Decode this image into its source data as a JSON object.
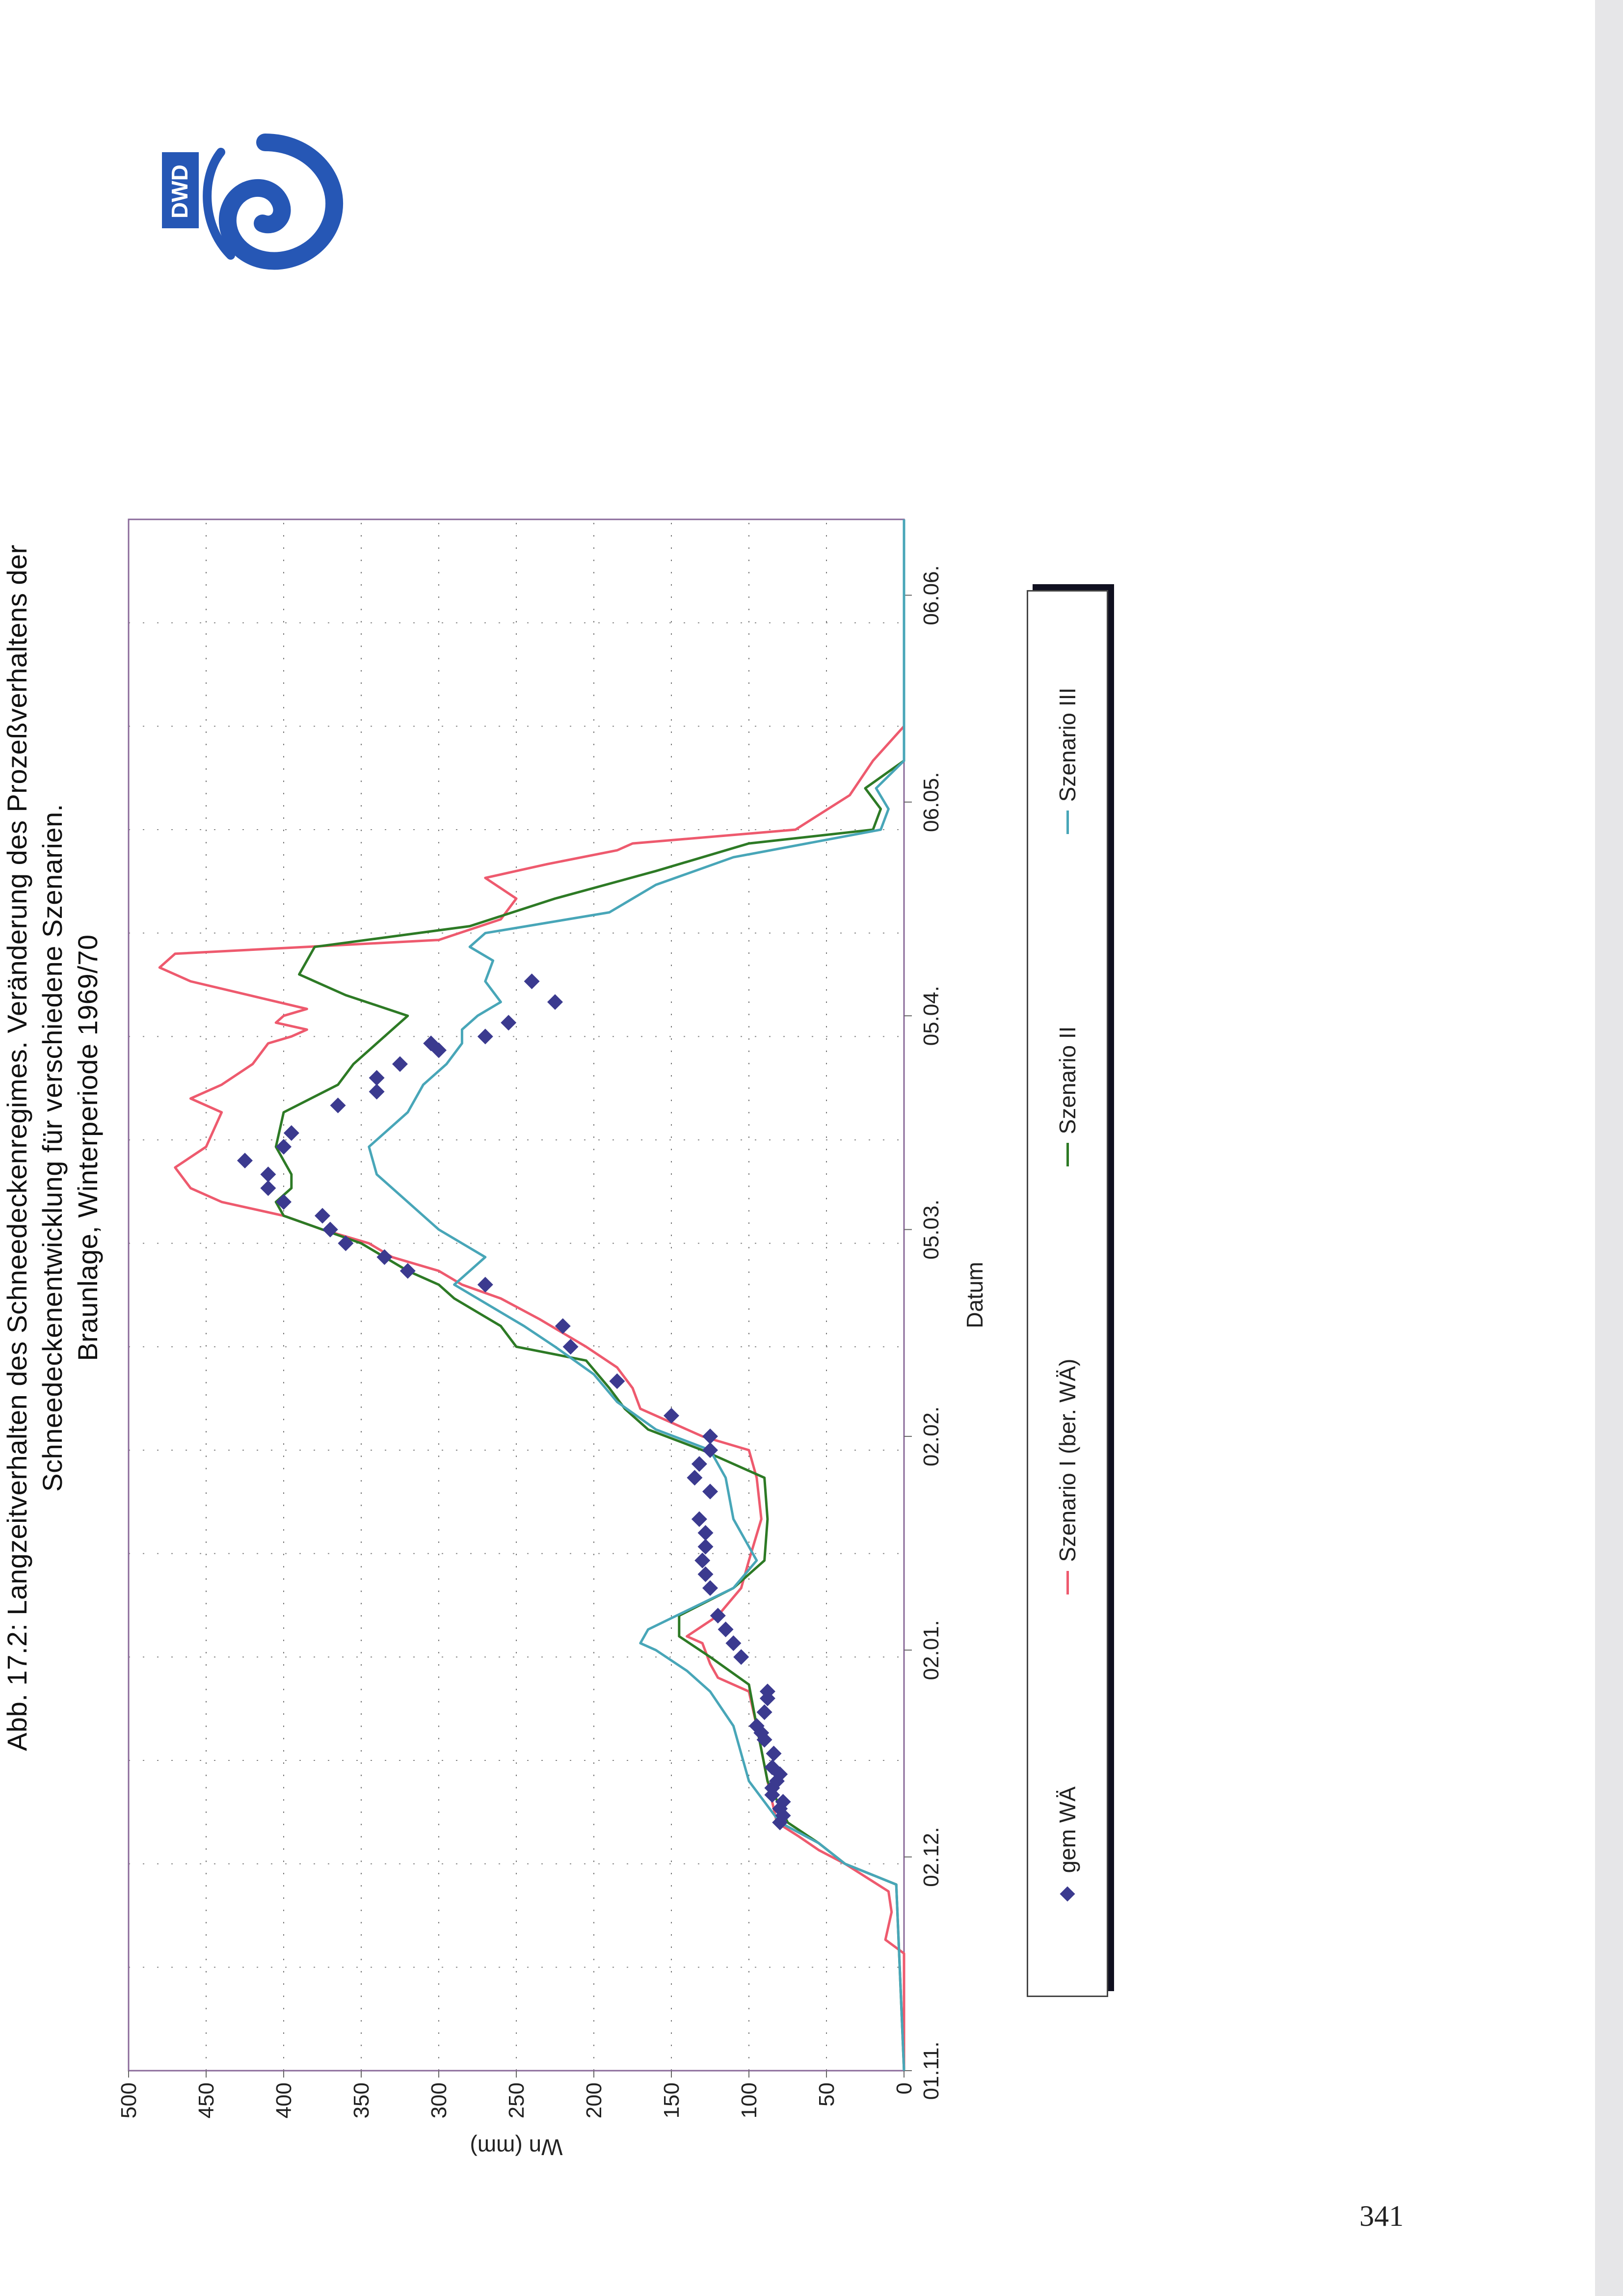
{
  "page": {
    "number": "341"
  },
  "logo": {
    "text": "DWD"
  },
  "caption": {
    "line1": "Abb. 17.2: Langzeitverhalten des Schneedeckenregimes. Veränderung des Prozeßverhaltens der",
    "line2": "Schneedeckenentwicklung für verschiedene Szenarien.",
    "line3": "Braunlage, Winterperiode 1969/70"
  },
  "chart_data": {
    "type": "line",
    "title": "Abb. 17.2: Langzeitverhalten des Schneedeckenregimes. Veränderung des Prozeßverhaltens der Schneedeckenentwicklung für verschiedene Szenarien. Braunlage, Winterperiode 1969/70",
    "xlabel": "Datum",
    "ylabel": "Wn (mm)",
    "xlim": [
      0,
      225
    ],
    "ylim": [
      0,
      500
    ],
    "y_ticks": [
      0,
      50,
      100,
      150,
      200,
      250,
      300,
      350,
      400,
      450,
      500
    ],
    "x_ticks": [
      {
        "day": 0,
        "label": "01.11."
      },
      {
        "day": 31,
        "label": "02.12."
      },
      {
        "day": 61,
        "label": "02.01."
      },
      {
        "day": 92,
        "label": "02.02."
      },
      {
        "day": 122,
        "label": "05.03."
      },
      {
        "day": 153,
        "label": "05.04."
      },
      {
        "day": 184,
        "label": "06.05."
      },
      {
        "day": 214,
        "label": "06.06."
      }
    ],
    "grid": true,
    "legend_position": "bottom",
    "series": [
      {
        "name": "Szenario I (ber. WÄ)",
        "color": "#ee5a6e",
        "kind": "line",
        "points": [
          [
            0,
            0
          ],
          [
            17,
            0
          ],
          [
            19,
            12
          ],
          [
            23,
            8
          ],
          [
            26,
            10
          ],
          [
            30,
            38
          ],
          [
            32,
            55
          ],
          [
            34,
            68
          ],
          [
            36,
            82
          ],
          [
            42,
            88
          ],
          [
            50,
            95
          ],
          [
            55,
            100
          ],
          [
            57,
            120
          ],
          [
            59,
            125
          ],
          [
            62,
            130
          ],
          [
            63,
            140
          ],
          [
            66,
            120
          ],
          [
            70,
            105
          ],
          [
            74,
            100
          ],
          [
            80,
            92
          ],
          [
            86,
            95
          ],
          [
            90,
            100
          ],
          [
            92,
            130
          ],
          [
            96,
            170
          ],
          [
            99,
            175
          ],
          [
            102,
            185
          ],
          [
            105,
            205
          ],
          [
            109,
            235
          ],
          [
            112,
            260
          ],
          [
            114,
            285
          ],
          [
            116,
            300
          ],
          [
            118,
            330
          ],
          [
            120,
            345
          ],
          [
            122,
            375
          ],
          [
            124,
            400
          ],
          [
            126,
            440
          ],
          [
            128,
            460
          ],
          [
            131,
            470
          ],
          [
            134,
            450
          ],
          [
            139,
            440
          ],
          [
            141,
            460
          ],
          [
            143,
            440
          ],
          [
            146,
            420
          ],
          [
            149,
            410
          ],
          [
            150,
            395
          ],
          [
            151,
            385
          ],
          [
            152,
            405
          ],
          [
            153,
            400
          ],
          [
            154,
            385
          ],
          [
            158,
            460
          ],
          [
            160,
            480
          ],
          [
            162,
            470
          ],
          [
            164,
            300
          ],
          [
            167,
            260
          ],
          [
            170,
            250
          ],
          [
            173,
            270
          ],
          [
            175,
            230
          ],
          [
            177,
            185
          ],
          [
            178,
            175
          ],
          [
            180,
            70
          ],
          [
            185,
            35
          ],
          [
            190,
            20
          ],
          [
            195,
            0
          ],
          [
            225,
            0
          ]
        ]
      },
      {
        "name": "Szenario II",
        "color": "#2d7a25",
        "kind": "line",
        "points": [
          [
            0,
            0
          ],
          [
            27,
            5
          ],
          [
            30,
            38
          ],
          [
            33,
            55
          ],
          [
            36,
            75
          ],
          [
            42,
            88
          ],
          [
            50,
            95
          ],
          [
            56,
            100
          ],
          [
            60,
            125
          ],
          [
            63,
            145
          ],
          [
            66,
            145
          ],
          [
            70,
            110
          ],
          [
            74,
            90
          ],
          [
            80,
            88
          ],
          [
            86,
            90
          ],
          [
            90,
            130
          ],
          [
            93,
            165
          ],
          [
            96,
            180
          ],
          [
            99,
            190
          ],
          [
            103,
            205
          ],
          [
            105,
            250
          ],
          [
            108,
            260
          ],
          [
            110,
            275
          ],
          [
            112,
            290
          ],
          [
            114,
            300
          ],
          [
            116,
            320
          ],
          [
            120,
            350
          ],
          [
            122,
            375
          ],
          [
            124,
            400
          ],
          [
            126,
            405
          ],
          [
            128,
            395
          ],
          [
            130,
            395
          ],
          [
            134,
            405
          ],
          [
            139,
            400
          ],
          [
            143,
            365
          ],
          [
            146,
            355
          ],
          [
            149,
            340
          ],
          [
            151,
            330
          ],
          [
            153,
            320
          ],
          [
            156,
            360
          ],
          [
            159,
            390
          ],
          [
            163,
            380
          ],
          [
            166,
            280
          ],
          [
            170,
            225
          ],
          [
            174,
            160
          ],
          [
            178,
            100
          ],
          [
            180,
            20
          ],
          [
            183,
            15
          ],
          [
            186,
            25
          ],
          [
            190,
            0
          ],
          [
            225,
            0
          ]
        ]
      },
      {
        "name": "Szenario III",
        "color": "#48a6b8",
        "kind": "line",
        "points": [
          [
            0,
            0
          ],
          [
            27,
            5
          ],
          [
            30,
            38
          ],
          [
            33,
            55
          ],
          [
            36,
            80
          ],
          [
            42,
            100
          ],
          [
            50,
            110
          ],
          [
            55,
            125
          ],
          [
            58,
            140
          ],
          [
            61,
            160
          ],
          [
            62,
            170
          ],
          [
            64,
            165
          ],
          [
            70,
            110
          ],
          [
            74,
            95
          ],
          [
            80,
            110
          ],
          [
            86,
            115
          ],
          [
            90,
            125
          ],
          [
            93,
            160
          ],
          [
            97,
            185
          ],
          [
            101,
            200
          ],
          [
            105,
            225
          ],
          [
            108,
            245
          ],
          [
            110,
            260
          ],
          [
            114,
            290
          ],
          [
            118,
            270
          ],
          [
            122,
            300
          ],
          [
            126,
            320
          ],
          [
            130,
            340
          ],
          [
            134,
            345
          ],
          [
            139,
            320
          ],
          [
            143,
            310
          ],
          [
            146,
            295
          ],
          [
            149,
            285
          ],
          [
            151,
            285
          ],
          [
            153,
            275
          ],
          [
            155,
            260
          ],
          [
            158,
            270
          ],
          [
            161,
            265
          ],
          [
            163,
            280
          ],
          [
            165,
            270
          ],
          [
            168,
            190
          ],
          [
            172,
            160
          ],
          [
            176,
            110
          ],
          [
            180,
            15
          ],
          [
            183,
            10
          ],
          [
            186,
            18
          ],
          [
            190,
            0
          ],
          [
            225,
            0
          ]
        ]
      },
      {
        "name": "gem WÄ",
        "color": "#3b3a8f",
        "kind": "markers",
        "points": [
          [
            36,
            80
          ],
          [
            37,
            78
          ],
          [
            38,
            80
          ],
          [
            39,
            78
          ],
          [
            40,
            85
          ],
          [
            41,
            85
          ],
          [
            42,
            82
          ],
          [
            43,
            80
          ],
          [
            44,
            85
          ],
          [
            46,
            84
          ],
          [
            48,
            90
          ],
          [
            49,
            92
          ],
          [
            50,
            95
          ],
          [
            52,
            90
          ],
          [
            54,
            88
          ],
          [
            55,
            88
          ],
          [
            60,
            105
          ],
          [
            62,
            110
          ],
          [
            64,
            115
          ],
          [
            66,
            120
          ],
          [
            70,
            125
          ],
          [
            72,
            128
          ],
          [
            74,
            130
          ],
          [
            76,
            128
          ],
          [
            78,
            128
          ],
          [
            80,
            132
          ],
          [
            84,
            125
          ],
          [
            86,
            135
          ],
          [
            88,
            132
          ],
          [
            90,
            125
          ],
          [
            92,
            125
          ],
          [
            95,
            150
          ],
          [
            100,
            185
          ],
          [
            105,
            215
          ],
          [
            108,
            220
          ],
          [
            114,
            270
          ],
          [
            116,
            320
          ],
          [
            118,
            335
          ],
          [
            120,
            360
          ],
          [
            122,
            370
          ],
          [
            124,
            375
          ],
          [
            126,
            400
          ],
          [
            128,
            410
          ],
          [
            130,
            410
          ],
          [
            132,
            425
          ],
          [
            134,
            400
          ],
          [
            136,
            395
          ],
          [
            140,
            365
          ],
          [
            142,
            340
          ],
          [
            144,
            340
          ],
          [
            146,
            325
          ],
          [
            148,
            300
          ],
          [
            149,
            305
          ],
          [
            150,
            270
          ],
          [
            152,
            255
          ],
          [
            155,
            225
          ],
          [
            158,
            240
          ]
        ]
      }
    ]
  }
}
